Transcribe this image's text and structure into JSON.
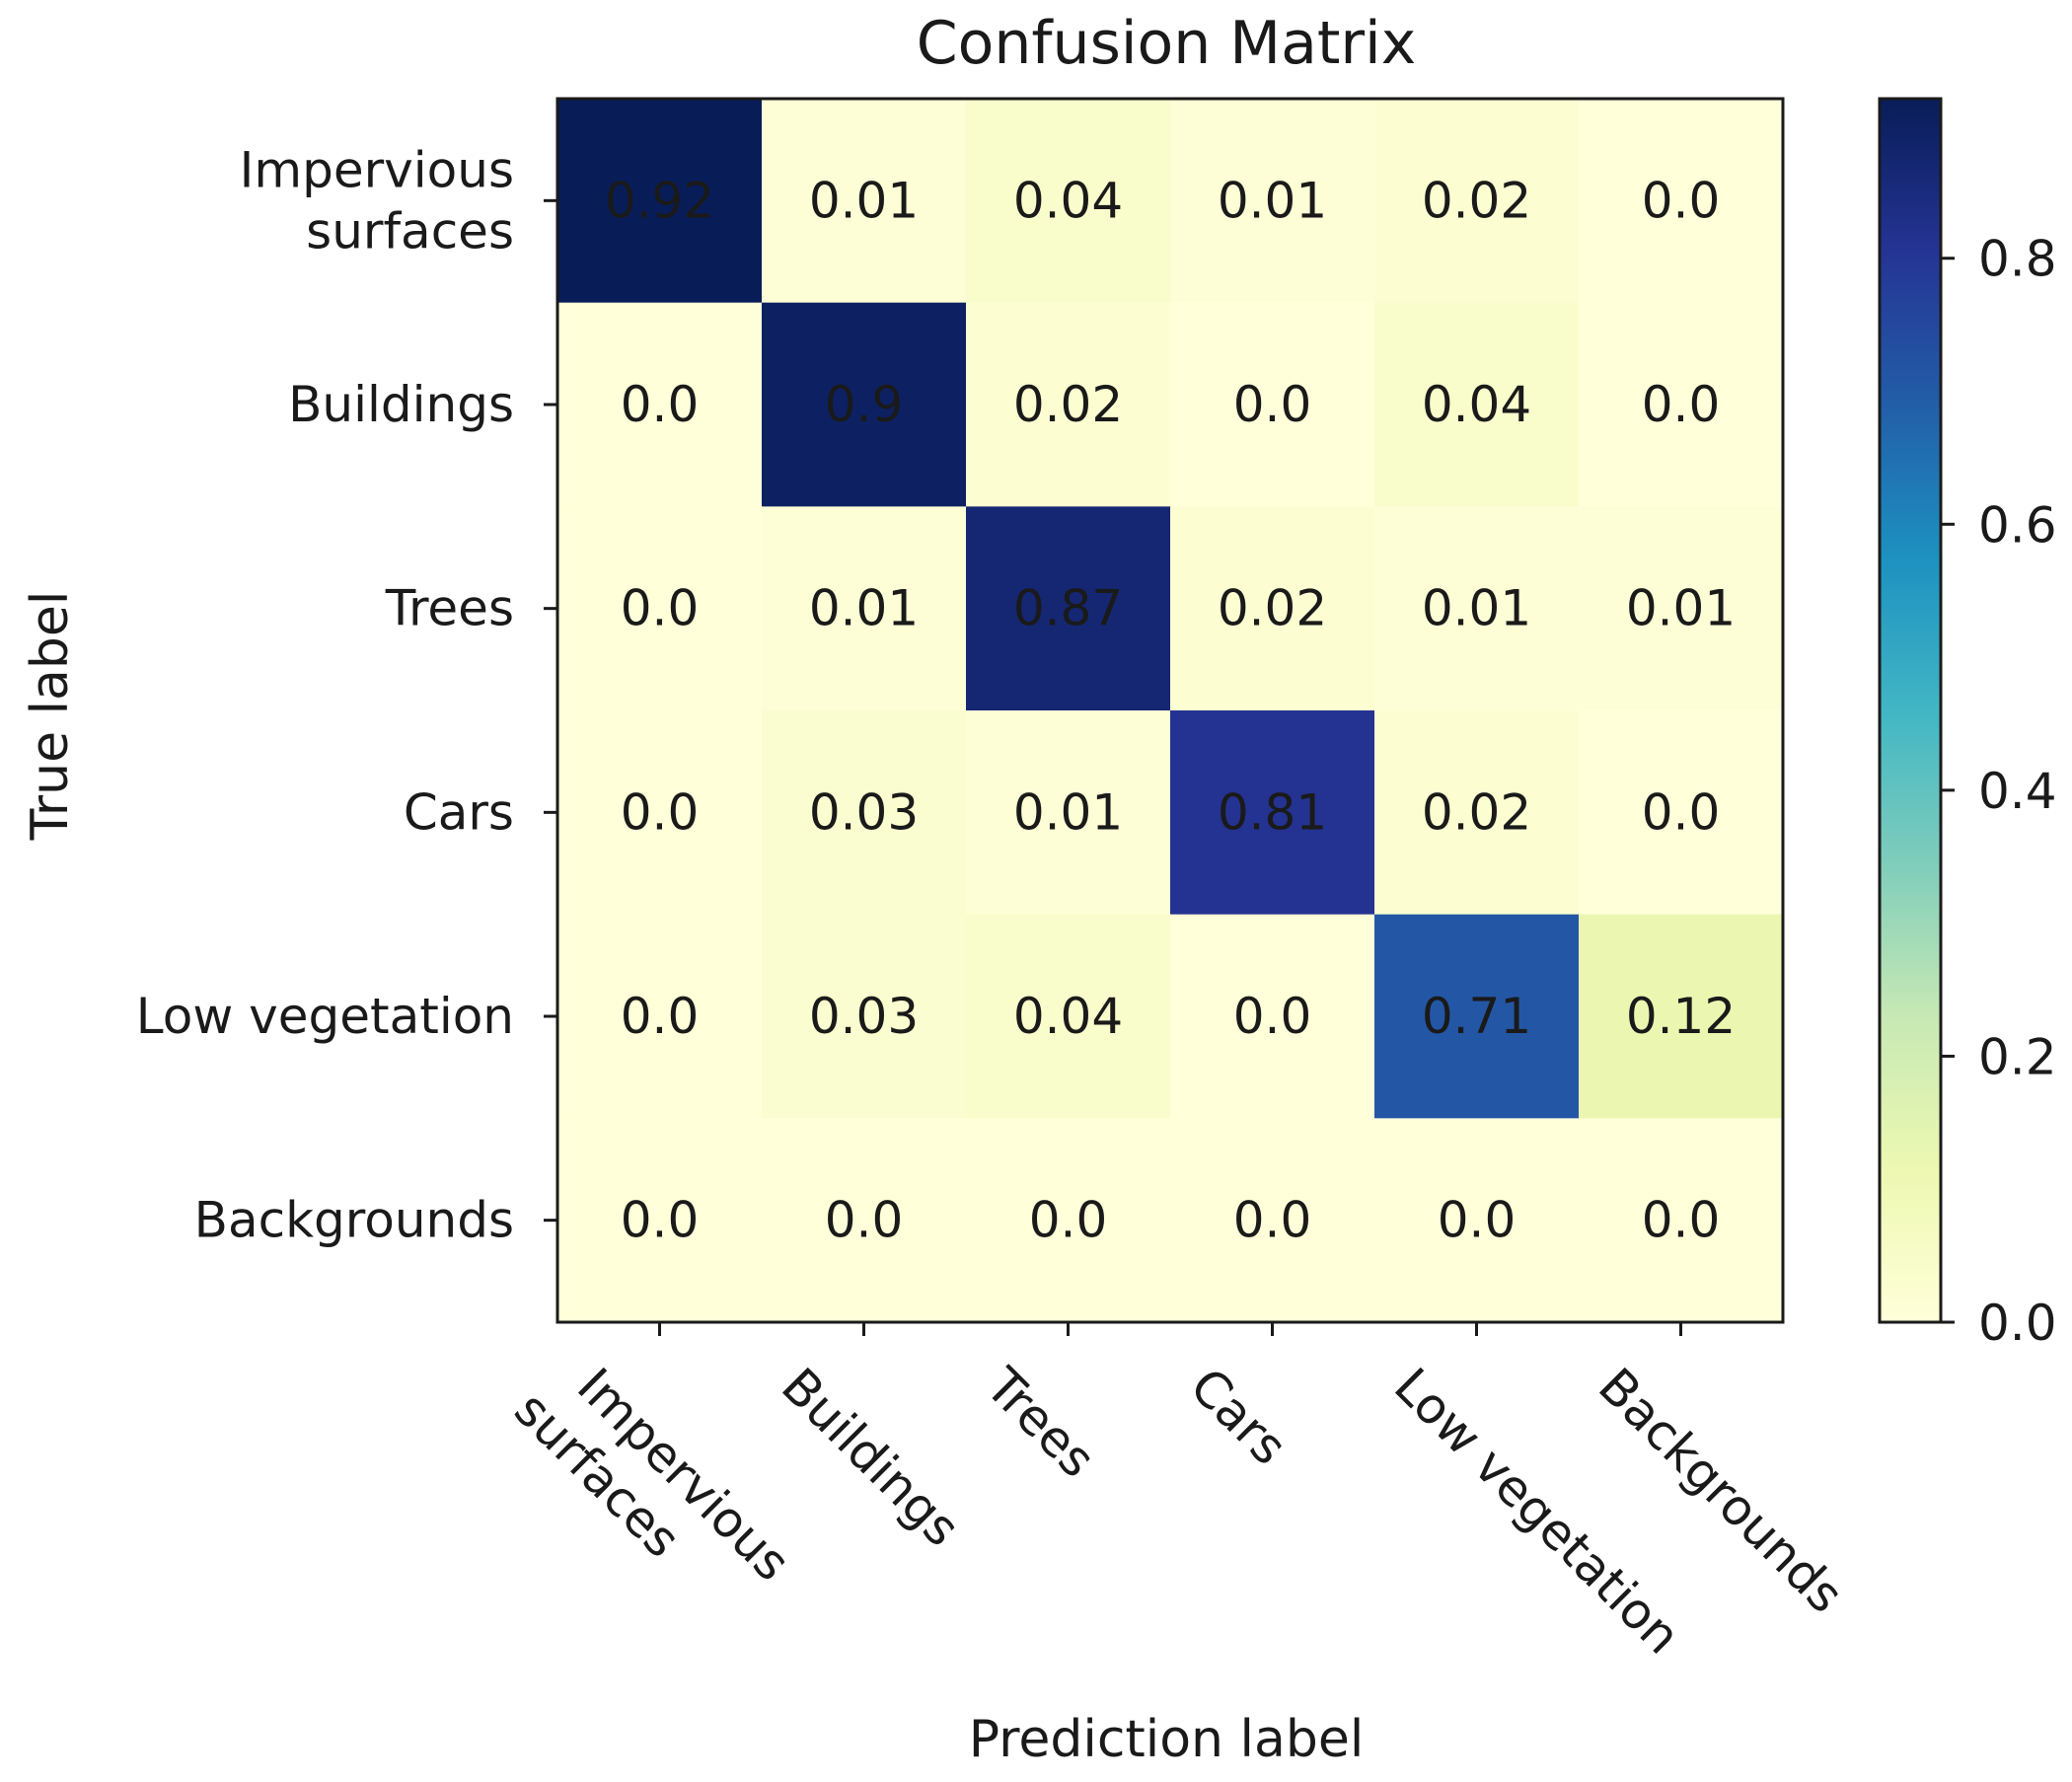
{
  "chart_data": {
    "type": "heatmap",
    "title": "Confusion Matrix",
    "xlabel": "Prediction label",
    "ylabel": "True label",
    "x_categories": [
      "Impervious\nsurfaces",
      "Buildings",
      "Trees",
      "Cars",
      "Low vegetation",
      "Backgrounds"
    ],
    "y_categories": [
      "Impervious\nsurfaces",
      "Buildings",
      "Trees",
      "Cars",
      "Low vegetation",
      "Backgrounds"
    ],
    "values": [
      [
        0.92,
        0.01,
        0.04,
        0.01,
        0.02,
        0.0
      ],
      [
        0.0,
        0.9,
        0.02,
        0.0,
        0.04,
        0.0
      ],
      [
        0.0,
        0.01,
        0.87,
        0.02,
        0.01,
        0.01
      ],
      [
        0.0,
        0.03,
        0.01,
        0.81,
        0.02,
        0.0
      ],
      [
        0.0,
        0.03,
        0.04,
        0.0,
        0.71,
        0.12
      ],
      [
        0.0,
        0.0,
        0.0,
        0.0,
        0.0,
        0.0
      ]
    ],
    "cell_labels": [
      [
        "0.92",
        "0.01",
        "0.04",
        "0.01",
        "0.02",
        "0.0"
      ],
      [
        "0.0",
        "0.9",
        "0.02",
        "0.0",
        "0.04",
        "0.0"
      ],
      [
        "0.0",
        "0.01",
        "0.87",
        "0.02",
        "0.01",
        "0.01"
      ],
      [
        "0.0",
        "0.03",
        "0.01",
        "0.81",
        "0.02",
        "0.0"
      ],
      [
        "0.0",
        "0.03",
        "0.04",
        "0.0",
        "0.71",
        "0.12"
      ],
      [
        "0.0",
        "0.0",
        "0.0",
        "0.0",
        "0.0",
        "0.0"
      ]
    ],
    "colorbar": {
      "colormap": "YlGnBu",
      "range": [
        0.0,
        0.92
      ],
      "ticks": [
        0.0,
        0.2,
        0.4,
        0.6,
        0.8
      ],
      "tick_labels": [
        "0.0",
        "0.2",
        "0.4",
        "0.6",
        "0.8"
      ]
    },
    "colorscale_stops": [
      "#ffffd9",
      "#edf8b1",
      "#c7e9b4",
      "#7fcdbb",
      "#41b6c4",
      "#1d91c0",
      "#225ea8",
      "#253494",
      "#081d58"
    ]
  }
}
